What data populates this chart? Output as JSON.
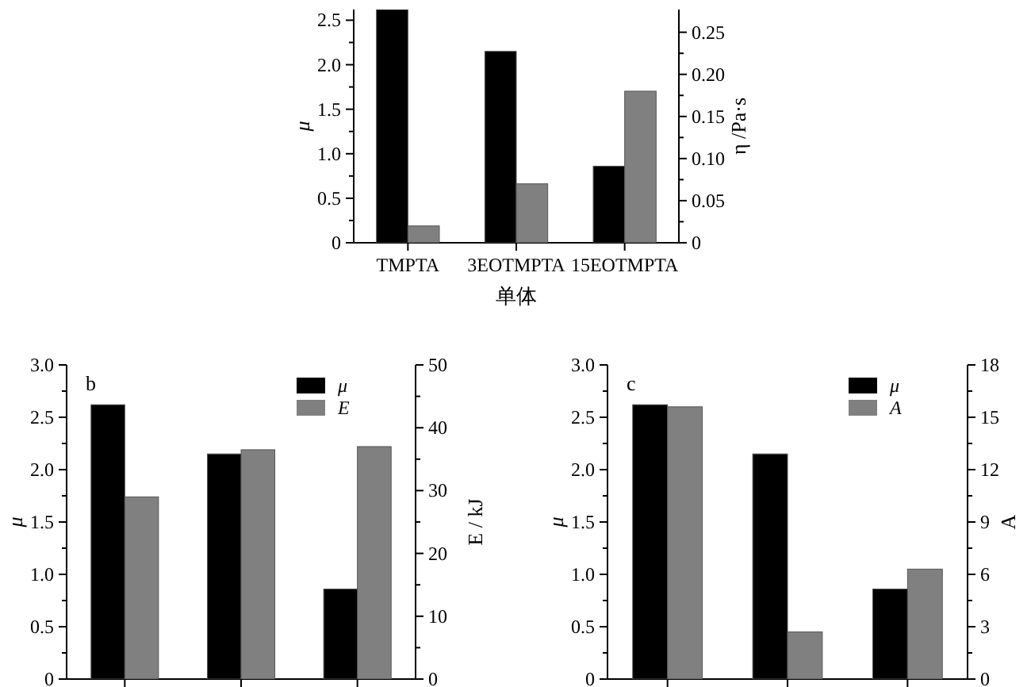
{
  "chart_data": [
    {
      "type": "bar",
      "categories": [
        "TMPTA",
        "3EOTMPTA",
        "15EOTMPTA"
      ],
      "xlabel": "单体",
      "ylabel": "μ",
      "y2label": "η /Pa·s",
      "ylim": [
        0,
        2.62
      ],
      "yticks": [
        0,
        0.5,
        {
          "value": 1,
          "label": "1.0"
        },
        1.5,
        {
          "value": 2,
          "label": "2.0"
        },
        2.5
      ],
      "y2lim": [
        0,
        0.277
      ],
      "y2ticks": [
        0,
        0.05,
        {
          "value": 0.1,
          "label": "0.10"
        },
        0.15,
        {
          "value": 0.2,
          "label": "0.20"
        },
        0.25
      ],
      "legend": false,
      "series": [
        {
          "color": "#000000",
          "values": [
            2.62,
            2.15,
            0.86
          ]
        },
        {
          "color": "#808080",
          "values": [
            0.02,
            0.07,
            0.18
          ],
          "axis": "y2"
        }
      ]
    },
    {
      "type": "bar",
      "categories": [
        null,
        null,
        null
      ],
      "ylabel": "μ",
      "y2label": "E / kJ",
      "ylim": [
        0,
        3
      ],
      "yticks": [
        0,
        0.5,
        {
          "value": 1,
          "label": "1.0"
        },
        1.5,
        {
          "value": 2,
          "label": "2.0"
        },
        2.5,
        {
          "value": 3,
          "label": "3.0"
        }
      ],
      "y2lim": [
        0,
        50
      ],
      "y2ticks": [
        0,
        10,
        20,
        30,
        40,
        50
      ],
      "legend": "top right",
      "annotations": [
        "b"
      ],
      "series": [
        {
          "name": "μ",
          "color": "#000000",
          "values": [
            2.62,
            2.15,
            0.86
          ]
        },
        {
          "name": "E",
          "color": "#808080",
          "values": [
            29,
            36.5,
            37
          ],
          "axis": "y2"
        }
      ]
    },
    {
      "type": "bar",
      "categories": [
        null,
        null,
        null
      ],
      "ylabel": "μ",
      "y2label": "A",
      "ylim": [
        0,
        3
      ],
      "yticks": [
        0,
        0.5,
        {
          "value": 1,
          "label": "1.0"
        },
        1.5,
        {
          "value": 2,
          "label": "2.0"
        },
        2.5,
        {
          "value": 3,
          "label": "3.0"
        }
      ],
      "y2lim": [
        0,
        18
      ],
      "y2ticks": [
        0,
        3,
        6,
        9,
        12,
        15,
        18
      ],
      "legend": "top right",
      "annotations": [
        "c"
      ],
      "series": [
        {
          "name": "μ",
          "color": "#000000",
          "values": [
            2.62,
            2.15,
            0.86
          ]
        },
        {
          "name": "A",
          "color": "#808080",
          "values": [
            15.6,
            2.7,
            6.3
          ],
          "axis": "y2"
        }
      ]
    }
  ]
}
